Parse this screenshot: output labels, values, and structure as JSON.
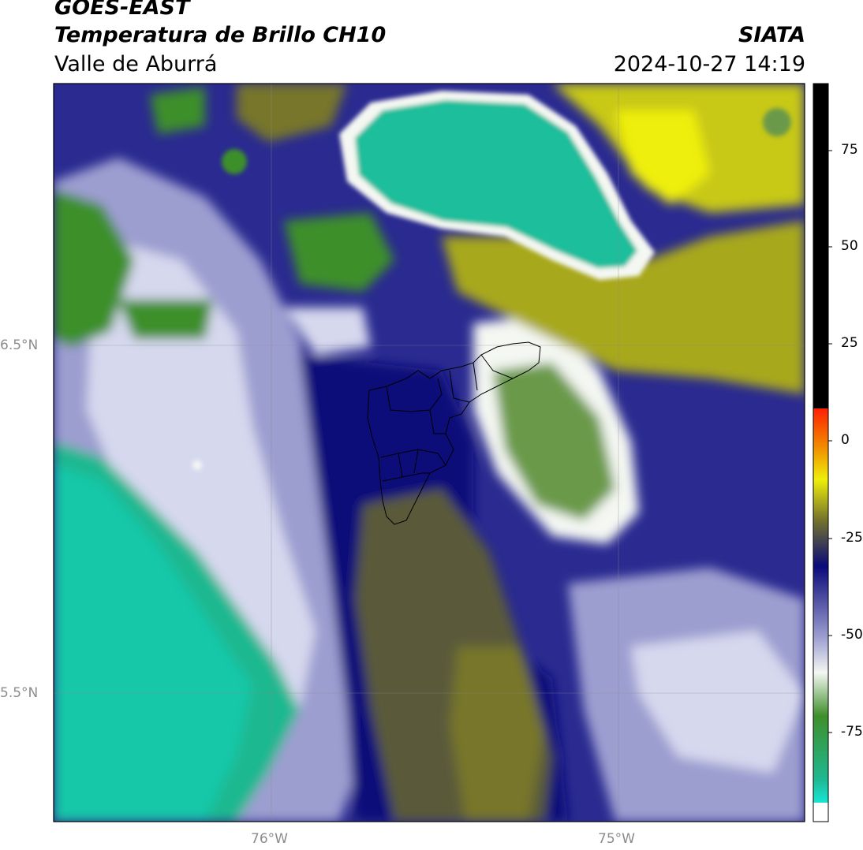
{
  "header": {
    "satellite": "GOES-EAST",
    "product": "Temperatura de Brillo CH10",
    "region": "Valle de Aburrá",
    "source": "SIATA",
    "datetime": "2024-10-27 14:19"
  },
  "map": {
    "lat_labels": [
      "6.5°N",
      "5.5°N"
    ],
    "lon_labels": [
      "76°W",
      "75°W"
    ],
    "background_fill": "#2a2a90"
  },
  "colorbar": {
    "ticks": [
      "75",
      "50",
      "25",
      "0",
      "-25",
      "-50",
      "-75"
    ],
    "palette": {
      "cyan": "#19e5d5",
      "teal": "#1fb890",
      "green": "#3e8f2a",
      "white": "#f4f7f2",
      "lavender": "#9c9ed0",
      "navy": "#0a0a7a",
      "olive": "#77762a",
      "yellow": "#efef0a",
      "orange": "#f08e00",
      "red": "#ff2000",
      "black": "#000000"
    }
  }
}
